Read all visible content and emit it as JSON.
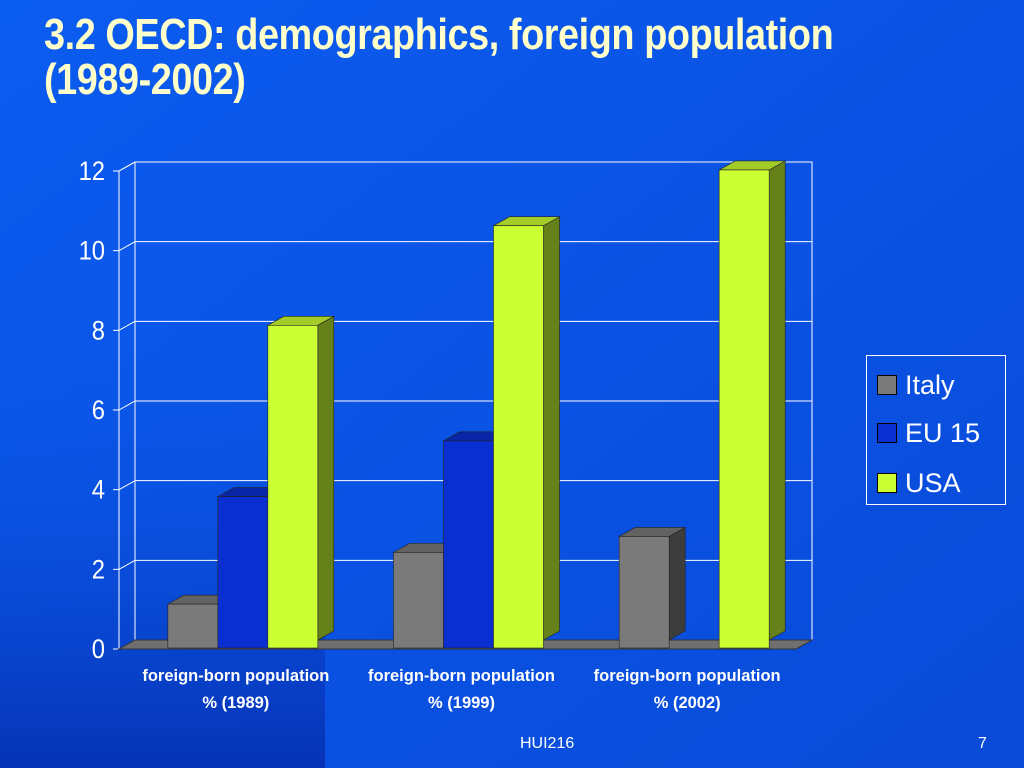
{
  "slide": {
    "title_line1": "3.2 OECD: demographics, foreign population",
    "title_line2": "(1989-2002)",
    "footer_center": "HUI216",
    "page_number": "7",
    "background_color": "#0a55e6"
  },
  "chart_data": {
    "type": "bar",
    "style": "3d-clustered-column",
    "categories": [
      [
        "foreign-born population",
        "% (1989)"
      ],
      [
        "foreign-born population",
        "% (1999)"
      ],
      [
        "foreign-born population",
        "% (2002)"
      ]
    ],
    "series": [
      {
        "name": "Italy",
        "values": [
          0.9,
          2.2,
          2.6
        ],
        "color": "#7a7a7a"
      },
      {
        "name": "EU 15",
        "values": [
          3.6,
          5.0,
          null
        ],
        "color": "#0a2fd0"
      },
      {
        "name": "USA",
        "values": [
          7.9,
          10.4,
          11.8
        ],
        "color": "#ccff33"
      }
    ],
    "ylim": [
      0,
      12
    ],
    "yticks": [
      "0",
      "2",
      "4",
      "6",
      "8",
      "10",
      "12"
    ],
    "grid": true,
    "legend_position": "right",
    "text_color": "#ffffff",
    "gridline_color": "#ffffff"
  }
}
